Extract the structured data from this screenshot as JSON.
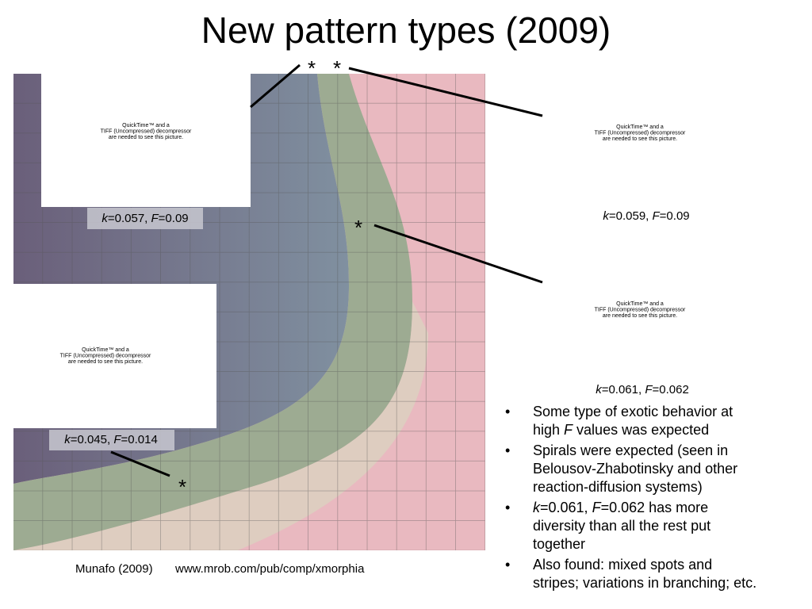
{
  "title": "New pattern types (2009)",
  "panels": [
    {
      "placeholder": [
        "QuickTime™ and a",
        "TIFF (Uncompressed) decompressor",
        "are needed to see this picture."
      ],
      "caption": [
        {
          "text": "k",
          "italic": true
        },
        "=0.057, ",
        {
          "text": "F",
          "italic": true
        },
        "=0.09"
      ]
    },
    {
      "placeholder": [
        "QuickTime™ and a",
        "TIFF (Uncompressed) decompressor",
        "are needed to see this picture."
      ],
      "caption": [
        {
          "text": "k",
          "italic": true
        },
        "=0.059, ",
        {
          "text": "F",
          "italic": true
        },
        "=0.09"
      ]
    },
    {
      "placeholder": [
        "QuickTime™ and a",
        "TIFF (Uncompressed) decompressor",
        "are needed to see this picture."
      ],
      "caption": [
        {
          "text": "k",
          "italic": true
        },
        "=0.061, ",
        {
          "text": "F",
          "italic": true
        },
        "=0.062"
      ]
    },
    {
      "placeholder": [
        "QuickTime™ and a",
        "TIFF (Uncompressed) decompressor",
        "are needed to see this picture."
      ],
      "caption": [
        {
          "text": "k",
          "italic": true
        },
        "=0.045, ",
        {
          "text": "F",
          "italic": true
        },
        "=0.014"
      ]
    }
  ],
  "markers": [
    "*",
    "*",
    "*",
    "*"
  ],
  "bullet_symbol": "•",
  "bullets": [
    [
      [
        "Some type of exotic behavior at"
      ],
      [
        "high ",
        {
          "text": "F",
          "italic": true
        },
        " values was expected"
      ]
    ],
    [
      [
        "Spirals were expected (seen in"
      ],
      [
        "Belousov-Zhabotinsky and other"
      ],
      [
        "reaction-diffusion systems)"
      ]
    ],
    [
      [
        {
          "text": "k",
          "italic": true
        },
        "=0.061, ",
        {
          "text": "F",
          "italic": true
        },
        "=0.062 has more"
      ],
      [
        "diversity than all the rest put"
      ],
      [
        "together"
      ]
    ],
    [
      [
        "Also found: mixed spots and"
      ],
      [
        "stripes; variations in branching; etc."
      ]
    ]
  ],
  "footer": {
    "credit": "Munafo (2009)",
    "url": "www.mrob.com/pub/comp/xmorphia"
  }
}
